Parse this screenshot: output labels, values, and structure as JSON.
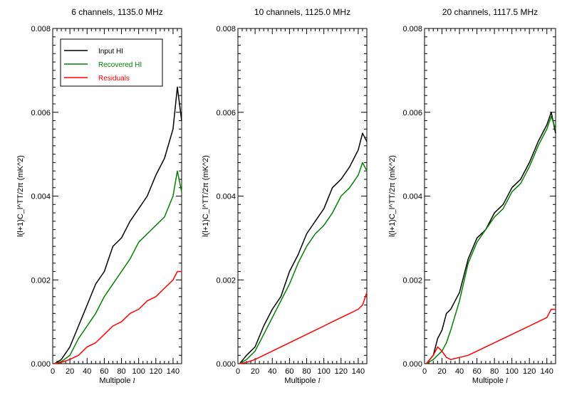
{
  "chart_data": [
    {
      "type": "line",
      "title": "6 channels, 1135.0 MHz",
      "xlabel": "Multipole",
      "xlabel_symbol": "l",
      "ylabel": "l(l+1)C_l^TT/2π (mK^2)",
      "xlim": [
        0,
        150
      ],
      "ylim": [
        0,
        0.008
      ],
      "x_ticks": [
        0,
        20,
        40,
        60,
        80,
        100,
        120,
        140
      ],
      "y_ticks": [
        0.0,
        0.002,
        0.004,
        0.006,
        0.008
      ],
      "y_tick_labels": [
        "0.000",
        "0.002",
        "0.004",
        "0.006",
        "0.008"
      ],
      "legend": {
        "position": "top-left",
        "entries": [
          "Input HI",
          "Recovered HI",
          "Residuals"
        ]
      },
      "series": [
        {
          "name": "Input HI",
          "color": "#000000",
          "x": [
            2,
            10,
            20,
            30,
            40,
            50,
            60,
            70,
            80,
            90,
            100,
            110,
            120,
            130,
            140,
            145,
            150
          ],
          "y": [
            0.0,
            0.0001,
            0.0004,
            0.0009,
            0.0014,
            0.0019,
            0.0022,
            0.0028,
            0.003,
            0.0034,
            0.0037,
            0.004,
            0.0045,
            0.0049,
            0.0056,
            0.0066,
            0.0058
          ]
        },
        {
          "name": "Recovered HI",
          "color": "#008000",
          "x": [
            2,
            10,
            20,
            30,
            40,
            50,
            60,
            70,
            80,
            90,
            100,
            110,
            120,
            130,
            140,
            145,
            150
          ],
          "y": [
            0.0,
            5e-05,
            0.0002,
            0.0006,
            0.0009,
            0.0012,
            0.0016,
            0.0019,
            0.0022,
            0.0025,
            0.0029,
            0.0031,
            0.0033,
            0.0035,
            0.004,
            0.0046,
            0.0041
          ]
        },
        {
          "name": "Residuals",
          "color": "#ff0000",
          "x": [
            2,
            10,
            20,
            30,
            40,
            50,
            60,
            70,
            80,
            90,
            100,
            110,
            120,
            130,
            140,
            145,
            150
          ],
          "y": [
            0.0,
            3e-05,
            0.0001,
            0.0002,
            0.0004,
            0.0005,
            0.0007,
            0.0009,
            0.001,
            0.0012,
            0.0013,
            0.0015,
            0.0016,
            0.0018,
            0.002,
            0.0022,
            0.0022
          ]
        }
      ]
    },
    {
      "type": "line",
      "title": "10 channels, 1125.0 MHz",
      "xlabel": "Multipole",
      "xlabel_symbol": "l",
      "ylabel": "l(l+1)C_l^TT/2π (mK^2)",
      "xlim": [
        0,
        150
      ],
      "ylim": [
        0,
        0.008
      ],
      "x_ticks": [
        0,
        20,
        40,
        60,
        80,
        100,
        120,
        140
      ],
      "y_ticks": [
        0.0,
        0.002,
        0.004,
        0.006,
        0.008
      ],
      "y_tick_labels": [
        "0.000",
        "0.002",
        "0.004",
        "0.006",
        "0.008"
      ],
      "series": [
        {
          "name": "Input HI",
          "color": "#000000",
          "x": [
            2,
            10,
            20,
            30,
            40,
            50,
            60,
            70,
            80,
            90,
            100,
            110,
            120,
            130,
            140,
            145,
            150
          ],
          "y": [
            0.0,
            0.0002,
            0.0004,
            0.0009,
            0.0013,
            0.0016,
            0.0022,
            0.0026,
            0.0031,
            0.0034,
            0.0037,
            0.0042,
            0.0044,
            0.0047,
            0.0051,
            0.0055,
            0.0053
          ]
        },
        {
          "name": "Recovered HI",
          "color": "#008000",
          "x": [
            2,
            10,
            20,
            30,
            40,
            50,
            60,
            70,
            80,
            90,
            100,
            110,
            120,
            130,
            140,
            145,
            150
          ],
          "y": [
            0.0,
            0.0001,
            0.0003,
            0.0007,
            0.0011,
            0.0015,
            0.0019,
            0.0024,
            0.0028,
            0.0031,
            0.0033,
            0.0036,
            0.004,
            0.0042,
            0.0045,
            0.0048,
            0.0046
          ]
        },
        {
          "name": "Residuals",
          "color": "#ff0000",
          "x": [
            2,
            10,
            20,
            30,
            40,
            50,
            60,
            70,
            80,
            90,
            100,
            110,
            120,
            130,
            140,
            145,
            150
          ],
          "y": [
            0.0,
            3e-05,
            0.0001,
            0.0002,
            0.0003,
            0.0004,
            0.0005,
            0.0006,
            0.0007,
            0.0008,
            0.0009,
            0.001,
            0.0011,
            0.0012,
            0.0013,
            0.0014,
            0.0017
          ]
        }
      ]
    },
    {
      "type": "line",
      "title": "20 channels, 1117.5 MHz",
      "xlabel": "Multipole",
      "xlabel_symbol": "l",
      "ylabel": "l(l+1)C_l^TT/2π (mK^2)",
      "xlim": [
        0,
        150
      ],
      "ylim": [
        0,
        0.008
      ],
      "x_ticks": [
        0,
        20,
        40,
        60,
        80,
        100,
        120,
        140
      ],
      "y_ticks": [
        0.0,
        0.002,
        0.004,
        0.006,
        0.008
      ],
      "y_tick_labels": [
        "0.000",
        "0.002",
        "0.004",
        "0.006",
        "0.008"
      ],
      "series": [
        {
          "name": "Input HI",
          "color": "#000000",
          "x": [
            2,
            10,
            15,
            20,
            25,
            30,
            40,
            50,
            60,
            70,
            80,
            90,
            100,
            110,
            120,
            130,
            140,
            145,
            150
          ],
          "y": [
            0.0,
            0.0002,
            0.0006,
            0.0008,
            0.0012,
            0.0013,
            0.0017,
            0.0025,
            0.003,
            0.0032,
            0.0036,
            0.0038,
            0.0042,
            0.0044,
            0.0048,
            0.0053,
            0.0057,
            0.006,
            0.0055
          ]
        },
        {
          "name": "Recovered HI",
          "color": "#008000",
          "x": [
            2,
            10,
            15,
            20,
            25,
            30,
            40,
            50,
            60,
            70,
            80,
            90,
            100,
            110,
            120,
            130,
            140,
            145,
            150
          ],
          "y": [
            0.0,
            0.0001,
            0.0002,
            0.0003,
            0.0005,
            0.0008,
            0.0015,
            0.0024,
            0.0029,
            0.0032,
            0.0035,
            0.0037,
            0.0041,
            0.0043,
            0.0047,
            0.0052,
            0.0056,
            0.0059,
            0.0056
          ]
        },
        {
          "name": "Residuals",
          "color": "#ff0000",
          "x": [
            2,
            10,
            15,
            20,
            25,
            30,
            40,
            50,
            60,
            70,
            80,
            90,
            100,
            110,
            120,
            130,
            140,
            145,
            150
          ],
          "y": [
            0.0,
            0.0002,
            0.0004,
            0.0003,
            0.00015,
            0.0001,
            0.00015,
            0.0002,
            0.0003,
            0.0004,
            0.0005,
            0.0006,
            0.0007,
            0.0008,
            0.0009,
            0.001,
            0.0011,
            0.0013,
            0.0013
          ]
        }
      ]
    }
  ]
}
